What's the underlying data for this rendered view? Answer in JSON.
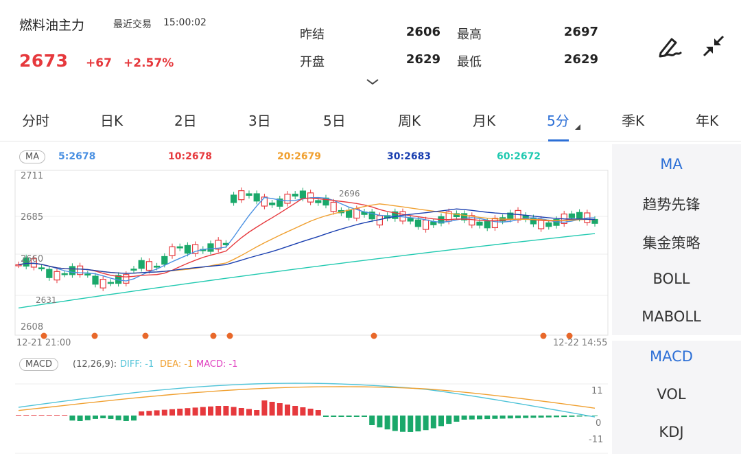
{
  "header": {
    "name": "燃料油主力",
    "last_trade_label": "最近交易",
    "last_trade_time": "15:00:02",
    "price": "2673",
    "change": "+67",
    "change_pct": "+2.57%",
    "stats": [
      {
        "label": "昨结",
        "value": "2606"
      },
      {
        "label": "最高",
        "value": "2697"
      },
      {
        "label": "开盘",
        "value": "2629"
      },
      {
        "label": "最低",
        "value": "2629"
      }
    ],
    "actions": [
      {
        "icon": "pen-draw-icon"
      },
      {
        "icon": "collapse-arrows-icon"
      }
    ]
  },
  "tabs": [
    {
      "label": "分时"
    },
    {
      "label": "日K"
    },
    {
      "label": "2日"
    },
    {
      "label": "3日"
    },
    {
      "label": "5日"
    },
    {
      "label": "周K"
    },
    {
      "label": "月K"
    },
    {
      "label": "5分",
      "active": true
    },
    {
      "label": "季K"
    },
    {
      "label": "年K"
    }
  ],
  "main_chart": {
    "indicator": "MA",
    "ma_values": [
      {
        "label": "5:2678",
        "color": "#4a90e2"
      },
      {
        "label": "10:2678",
        "color": "#e6393d"
      },
      {
        "label": "20:2679",
        "color": "#f0a030"
      },
      {
        "label": "30:2683",
        "color": "#1a3fb0"
      },
      {
        "label": "60:2672",
        "color": "#20c9b0"
      }
    ],
    "y_ticks": [
      "2711",
      "2685",
      "2660",
      "2608"
    ],
    "max_label": "2696",
    "min_label": "2631",
    "x_start": "12-21 21:00",
    "x_end": "12-22 14:55"
  },
  "sub_chart": {
    "indicator": "MACD",
    "params": "(12,26,9):",
    "diff": "DIFF: -1",
    "dea": "DEA: -1",
    "macd": "MACD: -1",
    "y_ticks": [
      "11",
      "0",
      "-11"
    ]
  },
  "side_menu": {
    "main": [
      {
        "label": "MA",
        "active": true
      },
      {
        "label": "趋势先锋"
      },
      {
        "label": "集金策略"
      },
      {
        "label": "BOLL"
      },
      {
        "label": "MABOLL"
      }
    ],
    "sub": [
      {
        "label": "MACD",
        "active": true
      },
      {
        "label": "VOL"
      },
      {
        "label": "KDJ"
      }
    ]
  },
  "colors": {
    "up": "#e6393d",
    "down": "#1aa86a",
    "accent": "#2c6fd6",
    "macd_diff": "#4fc3d8",
    "macd_dea": "#f0a030",
    "macd_hist": "#e040c0"
  }
}
